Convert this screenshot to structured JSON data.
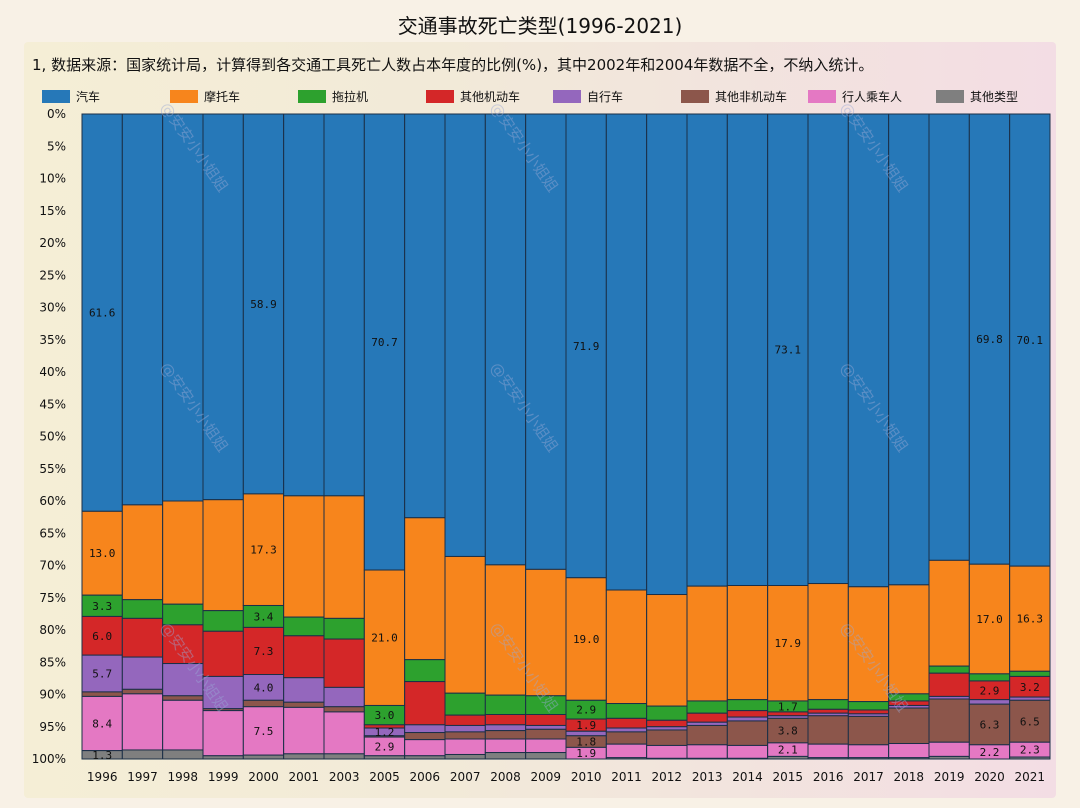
{
  "title": "交通事故死亡类型(1996-2021)",
  "note": "1, 数据来源：国家统计局，计算得到各交通工具死亡人数占本年度的比例(%)，其中2002年和2004年数据不全，不纳入统计。",
  "watermark": "@安安小小姐姐",
  "colors": {
    "汽车": "#2678b8",
    "摩托车": "#f7851c",
    "拖拉机": "#2da12e",
    "其他机动车": "#d42728",
    "自行车": "#9467bd",
    "其他非机动车": "#8c564b",
    "行人乘车人": "#e478c3",
    "其他类型": "#7f7f7f"
  },
  "chart_data": {
    "type": "bar",
    "stacked": true,
    "orientation": "vertical",
    "y_axis_inverted": true,
    "title": "交通事故死亡类型(1996-2021)",
    "ylim": [
      0,
      100
    ],
    "ytick_labels": [
      "0%",
      "5%",
      "10%",
      "15%",
      "20%",
      "25%",
      "30%",
      "35%",
      "40%",
      "45%",
      "50%",
      "55%",
      "60%",
      "65%",
      "70%",
      "75%",
      "80%",
      "85%",
      "90%",
      "95%",
      "100%"
    ],
    "legend_position": "top",
    "categories": [
      "1996",
      "1997",
      "1998",
      "1999",
      "2000",
      "2001",
      "2003",
      "2005",
      "2006",
      "2007",
      "2008",
      "2009",
      "2010",
      "2011",
      "2012",
      "2013",
      "2014",
      "2015",
      "2016",
      "2017",
      "2018",
      "2019",
      "2020",
      "2021"
    ],
    "series": [
      {
        "name": "汽车",
        "values": [
          61.6,
          60.6,
          60.0,
          59.8,
          58.9,
          59.2,
          59.2,
          70.7,
          62.6,
          68.6,
          69.9,
          70.6,
          71.9,
          73.8,
          74.5,
          73.2,
          73.1,
          73.1,
          72.8,
          73.3,
          73.0,
          69.2,
          69.8,
          70.1
        ]
      },
      {
        "name": "摩托车",
        "values": [
          13.0,
          14.7,
          16.0,
          17.2,
          17.3,
          18.8,
          19.0,
          21.0,
          22.0,
          21.2,
          20.2,
          19.6,
          19.0,
          17.6,
          17.3,
          17.8,
          17.7,
          17.9,
          18.0,
          17.8,
          16.9,
          16.4,
          17.0,
          16.3
        ]
      },
      {
        "name": "拖拉机",
        "values": [
          3.3,
          2.9,
          3.2,
          3.2,
          3.4,
          2.9,
          3.2,
          3.0,
          3.4,
          3.4,
          3.0,
          2.9,
          2.9,
          2.3,
          2.2,
          1.9,
          1.7,
          1.7,
          1.5,
          1.3,
          1.1,
          1.1,
          1.1,
          0.8
        ]
      },
      {
        "name": "其他机动车",
        "values": [
          6.0,
          6.0,
          6.0,
          7.0,
          7.3,
          6.5,
          7.5,
          0.5,
          6.7,
          1.6,
          1.6,
          1.7,
          1.9,
          1.5,
          1.0,
          1.4,
          1.0,
          0.6,
          0.6,
          0.6,
          0.7,
          3.6,
          2.9,
          3.2
        ]
      },
      {
        "name": "自行车",
        "values": [
          5.7,
          5.0,
          5.0,
          5.0,
          4.0,
          3.8,
          3.0,
          1.2,
          1.2,
          1.0,
          0.9,
          0.6,
          0.7,
          0.6,
          0.5,
          0.5,
          0.6,
          0.4,
          0.4,
          0.4,
          0.4,
          0.4,
          0.7,
          0.5
        ]
      },
      {
        "name": "其他非机动车",
        "values": [
          0.7,
          0.7,
          0.7,
          0.3,
          1.0,
          0.8,
          0.8,
          0.2,
          1.1,
          1.1,
          1.3,
          1.5,
          1.8,
          1.9,
          2.4,
          3.0,
          3.8,
          3.8,
          4.4,
          4.4,
          5.5,
          6.7,
          6.3,
          6.5
        ]
      },
      {
        "name": "行人乘车人",
        "values": [
          8.4,
          8.7,
          7.7,
          7.0,
          7.5,
          7.2,
          6.5,
          2.9,
          2.5,
          2.4,
          2.1,
          2.1,
          1.9,
          2.1,
          2.0,
          2.1,
          2.0,
          2.1,
          2.1,
          2.0,
          2.2,
          2.2,
          2.2,
          2.3
        ]
      },
      {
        "name": "其他类型",
        "values": [
          1.3,
          1.4,
          1.4,
          0.5,
          0.6,
          0.8,
          0.8,
          0.5,
          0.5,
          0.7,
          1.0,
          1.0,
          0.0,
          0.2,
          0.1,
          0.1,
          0.1,
          0.4,
          0.2,
          0.2,
          0.2,
          0.4,
          0.0,
          0.3
        ]
      }
    ],
    "data_labels": [
      {
        "series": "汽车",
        "category": "1996",
        "text": "61.6"
      },
      {
        "series": "汽车",
        "category": "2000",
        "text": "58.9"
      },
      {
        "series": "汽车",
        "category": "2005",
        "text": "70.7"
      },
      {
        "series": "汽车",
        "category": "2010",
        "text": "71.9"
      },
      {
        "series": "汽车",
        "category": "2015",
        "text": "73.1"
      },
      {
        "series": "汽车",
        "category": "2020",
        "text": "69.8"
      },
      {
        "series": "汽车",
        "category": "2021",
        "text": "70.1"
      },
      {
        "series": "摩托车",
        "category": "1996",
        "text": "13.0"
      },
      {
        "series": "摩托车",
        "category": "2000",
        "text": "17.3"
      },
      {
        "series": "摩托车",
        "category": "2005",
        "text": "21.0"
      },
      {
        "series": "摩托车",
        "category": "2010",
        "text": "19.0"
      },
      {
        "series": "摩托车",
        "category": "2015",
        "text": "17.9"
      },
      {
        "series": "摩托车",
        "category": "2020",
        "text": "17.0"
      },
      {
        "series": "摩托车",
        "category": "2021",
        "text": "16.3"
      },
      {
        "series": "拖拉机",
        "category": "1996",
        "text": "3.3"
      },
      {
        "series": "拖拉机",
        "category": "2000",
        "text": "3.4"
      },
      {
        "series": "拖拉机",
        "category": "2005",
        "text": "3.0"
      },
      {
        "series": "拖拉机",
        "category": "2010",
        "text": "2.9"
      },
      {
        "series": "拖拉机",
        "category": "2015",
        "text": "1.7"
      },
      {
        "series": "其他机动车",
        "category": "1996",
        "text": "6.0"
      },
      {
        "series": "其他机动车",
        "category": "2000",
        "text": "7.3"
      },
      {
        "series": "其他机动车",
        "category": "2010",
        "text": "1.9"
      },
      {
        "series": "其他机动车",
        "category": "2020",
        "text": "2.9"
      },
      {
        "series": "其他机动车",
        "category": "2021",
        "text": "3.2"
      },
      {
        "series": "自行车",
        "category": "1996",
        "text": "5.7"
      },
      {
        "series": "自行车",
        "category": "2000",
        "text": "4.0"
      },
      {
        "series": "自行车",
        "category": "2005",
        "text": "1.2"
      },
      {
        "series": "其他非机动车",
        "category": "2010",
        "text": "1.8"
      },
      {
        "series": "其他非机动车",
        "category": "2015",
        "text": "3.8"
      },
      {
        "series": "其他非机动车",
        "category": "2020",
        "text": "6.3"
      },
      {
        "series": "其他非机动车",
        "category": "2021",
        "text": "6.5"
      },
      {
        "series": "行人乘车人",
        "category": "1996",
        "text": "8.4"
      },
      {
        "series": "行人乘车人",
        "category": "2000",
        "text": "7.5"
      },
      {
        "series": "行人乘车人",
        "category": "2005",
        "text": "2.9"
      },
      {
        "series": "行人乘车人",
        "category": "2010",
        "text": "1.9"
      },
      {
        "series": "行人乘车人",
        "category": "2015",
        "text": "2.1"
      },
      {
        "series": "行人乘车人",
        "category": "2020",
        "text": "2.2"
      },
      {
        "series": "行人乘车人",
        "category": "2021",
        "text": "2.3"
      },
      {
        "series": "其他类型",
        "category": "1996",
        "text": "1.3"
      }
    ]
  }
}
